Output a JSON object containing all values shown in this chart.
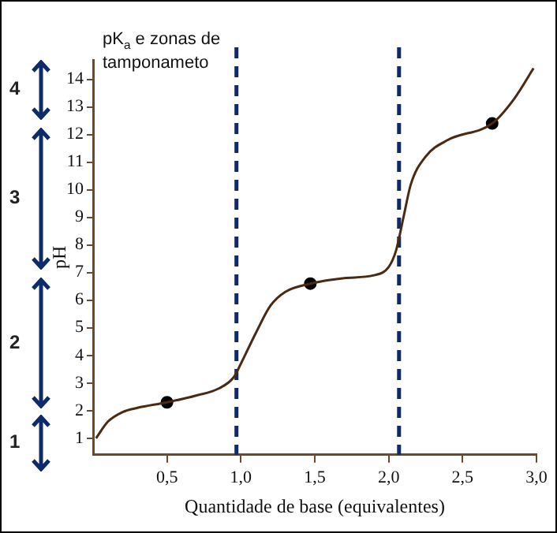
{
  "chart_data": {
    "type": "line",
    "title": "pK$_{a}$ e zonas de tamponameto",
    "xlabel": "Quantidade de base (equivalentes)",
    "ylabel": "pH",
    "xlim": [
      0,
      3
    ],
    "ylim": [
      0.4,
      14.7
    ],
    "xticks": [
      {
        "value": 0.5,
        "label": "0,5"
      },
      {
        "value": 1,
        "label": "1,0"
      },
      {
        "value": 1.5,
        "label": "1,5"
      },
      {
        "value": 2,
        "label": "2,0"
      },
      {
        "value": 2.5,
        "label": "2,5"
      },
      {
        "value": 3,
        "label": "3,0"
      }
    ],
    "yticks": [
      1,
      2,
      3,
      4,
      5,
      6,
      7,
      8,
      9,
      10,
      11,
      12,
      13,
      14
    ],
    "grid": false,
    "legend": false,
    "marker": "none",
    "line_style": "solid",
    "series": [
      {
        "color": "#4a2a10",
        "x": [
          0.02,
          0.1,
          0.2,
          0.3,
          0.5,
          0.7,
          0.85,
          0.95,
          1.0,
          1.1,
          1.2,
          1.3,
          1.47,
          1.7,
          1.9,
          2.0,
          2.05,
          2.1,
          2.15,
          2.25,
          2.4,
          2.7,
          2.85,
          2.98
        ],
        "values": [
          1.0,
          1.6,
          1.95,
          2.1,
          2.3,
          2.55,
          2.8,
          3.2,
          3.7,
          4.8,
          5.8,
          6.3,
          6.6,
          6.8,
          6.9,
          7.2,
          7.8,
          9.0,
          10.2,
          11.2,
          11.8,
          12.4,
          13.3,
          14.4
        ]
      },
      {
        "type": "scatter",
        "color": "#000000",
        "marker": "circle",
        "x": [
          0.5,
          1.47,
          2.7
        ],
        "values": [
          2.3,
          6.6,
          12.4
        ]
      }
    ],
    "ref_lines": [
      {
        "axis": "x",
        "value": 0.97,
        "color": "#0d2a6b",
        "line_style": "dashed"
      },
      {
        "axis": "x",
        "value": 2.07,
        "color": "#0d2a6b",
        "line_style": "dashed"
      }
    ],
    "annotations": [
      "4",
      "3",
      "2",
      "1"
    ]
  }
}
